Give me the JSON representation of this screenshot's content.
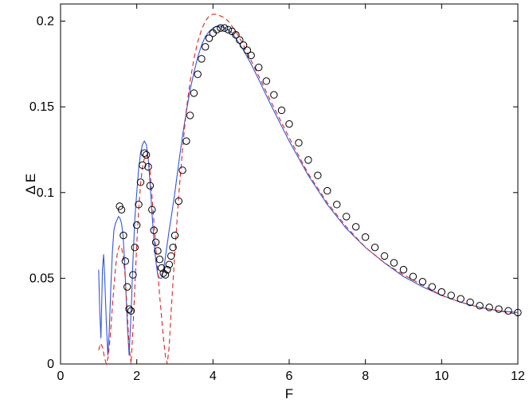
{
  "chart_data": {
    "type": "line",
    "title": "",
    "xlabel": "F",
    "ylabel": "Δ E",
    "xlim": [
      0,
      12
    ],
    "ylim": [
      0,
      0.21
    ],
    "xticks": [
      0,
      2,
      4,
      6,
      8,
      10,
      12
    ],
    "yticks": [
      0,
      0.05,
      0.1,
      0.15,
      0.2
    ],
    "xtick_labels": [
      "0",
      "2",
      "4",
      "6",
      "8",
      "10",
      "12"
    ],
    "ytick_labels": [
      "0",
      "0.05",
      "0.1",
      "0.15",
      "0.2"
    ],
    "grid": false,
    "legend": "none",
    "series": [
      {
        "style": "line-solid",
        "color": "#3355dd",
        "x": [
          1.0,
          1.03,
          1.06,
          1.1,
          1.13,
          1.16,
          1.2,
          1.24,
          1.28,
          1.32,
          1.36,
          1.4,
          1.44,
          1.48,
          1.52,
          1.56,
          1.6,
          1.64,
          1.68,
          1.72,
          1.76,
          1.8,
          1.82,
          1.86,
          1.9,
          1.95,
          2.0,
          2.05,
          2.1,
          2.15,
          2.2,
          2.25,
          2.3,
          2.35,
          2.4,
          2.45,
          2.5,
          2.55,
          2.6,
          2.65,
          2.7,
          2.75,
          2.8,
          2.85,
          2.9,
          3.0,
          3.1,
          3.2,
          3.3,
          3.4,
          3.5,
          3.6,
          3.7,
          3.8,
          3.9,
          4.0,
          4.1,
          4.2,
          4.3,
          4.4,
          4.5,
          4.6,
          4.8,
          5.0,
          5.2,
          5.5,
          6.0,
          6.5,
          7.0,
          7.5,
          8.0,
          8.5,
          9.0,
          9.5,
          10.0,
          10.5,
          11.0,
          11.5,
          12.0
        ],
        "y": [
          0.055,
          0.03,
          0.015,
          0.055,
          0.064,
          0.05,
          0.025,
          0.005,
          0.02,
          0.045,
          0.065,
          0.078,
          0.082,
          0.084,
          0.086,
          0.085,
          0.082,
          0.075,
          0.06,
          0.04,
          0.02,
          0.005,
          0.015,
          0.035,
          0.06,
          0.085,
          0.1,
          0.114,
          0.123,
          0.128,
          0.13,
          0.128,
          0.12,
          0.105,
          0.088,
          0.072,
          0.06,
          0.052,
          0.05,
          0.05,
          0.055,
          0.062,
          0.07,
          0.078,
          0.085,
          0.1,
          0.117,
          0.133,
          0.147,
          0.16,
          0.17,
          0.179,
          0.186,
          0.191,
          0.194,
          0.196,
          0.197,
          0.197,
          0.196,
          0.195,
          0.193,
          0.19,
          0.183,
          0.175,
          0.166,
          0.152,
          0.13,
          0.11,
          0.093,
          0.079,
          0.068,
          0.059,
          0.051,
          0.045,
          0.04,
          0.036,
          0.033,
          0.031,
          0.03
        ]
      },
      {
        "style": "line-dashed",
        "color": "#dd2222",
        "x": [
          1.0,
          1.05,
          1.1,
          1.15,
          1.2,
          1.25,
          1.3,
          1.35,
          1.4,
          1.45,
          1.5,
          1.55,
          1.6,
          1.65,
          1.7,
          1.75,
          1.8,
          1.85,
          1.9,
          1.95,
          2.0,
          2.05,
          2.1,
          2.15,
          2.2,
          2.25,
          2.3,
          2.35,
          2.4,
          2.5,
          2.6,
          2.7,
          2.75,
          2.8,
          2.85,
          2.9,
          3.0,
          3.1,
          3.2,
          3.3,
          3.4,
          3.5,
          3.6,
          3.7,
          3.8,
          3.9,
          4.0,
          4.1,
          4.2,
          4.3,
          4.4,
          4.5,
          4.6,
          4.8,
          5.0,
          5.2,
          5.5,
          6.0,
          6.5,
          7.0,
          7.5,
          8.0,
          8.5,
          9.0,
          9.5,
          10.0,
          10.5,
          11.0,
          11.5,
          12.0
        ],
        "y": [
          0.008,
          0.012,
          0.01,
          0.004,
          0.0,
          0.004,
          0.015,
          0.03,
          0.045,
          0.058,
          0.066,
          0.069,
          0.068,
          0.062,
          0.05,
          0.03,
          0.01,
          0.0,
          0.02,
          0.045,
          0.07,
          0.09,
          0.105,
          0.115,
          0.12,
          0.122,
          0.12,
          0.112,
          0.098,
          0.068,
          0.04,
          0.015,
          0.005,
          0.0,
          0.01,
          0.03,
          0.065,
          0.098,
          0.125,
          0.148,
          0.165,
          0.178,
          0.188,
          0.195,
          0.2,
          0.203,
          0.204,
          0.204,
          0.203,
          0.202,
          0.2,
          0.197,
          0.194,
          0.186,
          0.177,
          0.168,
          0.154,
          0.132,
          0.111,
          0.094,
          0.08,
          0.068,
          0.059,
          0.052,
          0.046,
          0.04,
          0.036,
          0.033,
          0.031,
          0.029
        ]
      },
      {
        "style": "circle-markers",
        "color": "#000000",
        "x": [
          1.55,
          1.6,
          1.65,
          1.7,
          1.75,
          1.8,
          1.85,
          1.9,
          1.95,
          2.0,
          2.05,
          2.1,
          2.15,
          2.2,
          2.25,
          2.3,
          2.35,
          2.4,
          2.45,
          2.5,
          2.55,
          2.6,
          2.65,
          2.7,
          2.75,
          2.8,
          2.85,
          2.9,
          2.95,
          3.0,
          3.1,
          3.2,
          3.3,
          3.4,
          3.5,
          3.6,
          3.7,
          3.8,
          3.9,
          4.0,
          4.1,
          4.2,
          4.3,
          4.4,
          4.5,
          4.6,
          4.7,
          4.8,
          4.9,
          5.0,
          5.2,
          5.4,
          5.6,
          5.8,
          6.0,
          6.25,
          6.5,
          6.75,
          7.0,
          7.25,
          7.5,
          7.75,
          8.0,
          8.25,
          8.5,
          8.75,
          9.0,
          9.25,
          9.5,
          9.75,
          10.0,
          10.25,
          10.5,
          10.75,
          11.0,
          11.25,
          11.5,
          11.75,
          12.0
        ],
        "y": [
          0.092,
          0.09,
          0.075,
          0.06,
          0.045,
          0.032,
          0.031,
          0.052,
          0.068,
          0.081,
          0.093,
          0.106,
          0.116,
          0.123,
          0.122,
          0.115,
          0.104,
          0.09,
          0.078,
          0.071,
          0.066,
          0.061,
          0.056,
          0.053,
          0.052,
          0.055,
          0.058,
          0.063,
          0.068,
          0.075,
          0.095,
          0.113,
          0.13,
          0.145,
          0.158,
          0.169,
          0.178,
          0.185,
          0.19,
          0.193,
          0.195,
          0.196,
          0.196,
          0.195,
          0.194,
          0.192,
          0.189,
          0.186,
          0.183,
          0.18,
          0.173,
          0.165,
          0.157,
          0.148,
          0.14,
          0.129,
          0.119,
          0.11,
          0.101,
          0.093,
          0.086,
          0.08,
          0.074,
          0.068,
          0.063,
          0.059,
          0.055,
          0.051,
          0.048,
          0.045,
          0.042,
          0.04,
          0.038,
          0.036,
          0.034,
          0.033,
          0.032,
          0.031,
          0.03
        ]
      }
    ]
  }
}
